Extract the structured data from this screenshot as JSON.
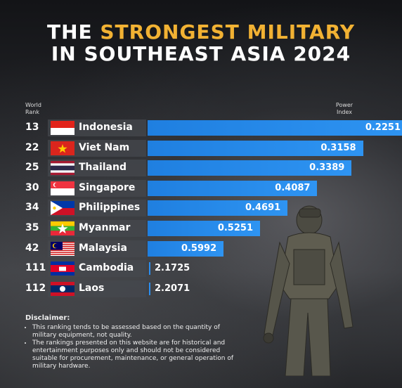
{
  "title": {
    "line1_a": "THE ",
    "line1_b": "STRONGEST MILITARY",
    "line2": "IN SOUTHEAST ASIA 2024"
  },
  "headers": {
    "left": "World Rank",
    "right": "Power Index"
  },
  "colors": {
    "accent": "#f2b233",
    "bar": "#2a8ae8"
  },
  "chart_data": {
    "type": "bar",
    "orientation": "horizontal",
    "note": "lower power index is stronger",
    "categories": [
      "Indonesia",
      "Viet Nam",
      "Thailand",
      "Singapore",
      "Philippines",
      "Myanmar",
      "Malaysia",
      "Cambodia",
      "Laos"
    ],
    "world_rank": [
      "13",
      "22",
      "25",
      "30",
      "34",
      "35",
      "42",
      "111",
      "112"
    ],
    "values": [
      0.2251,
      0.3158,
      0.3389,
      0.4087,
      0.4691,
      0.5251,
      0.5992,
      2.1725,
      2.2071
    ],
    "labels": [
      "0.2251",
      "0.3158",
      "0.3389",
      "0.4087",
      "0.4691",
      "0.5251",
      "0.5992",
      "2.1725",
      "2.2071"
    ]
  },
  "disclaimer": {
    "heading": "Disclaimer:",
    "items": [
      "This ranking tends to be assessed based on the quantity of military equipment, not quality.",
      "The rankings presented on this website are for historical and entertainment purposes only and should not be considered suitable for procurement, maintenance, or general operation of military hardware."
    ]
  }
}
